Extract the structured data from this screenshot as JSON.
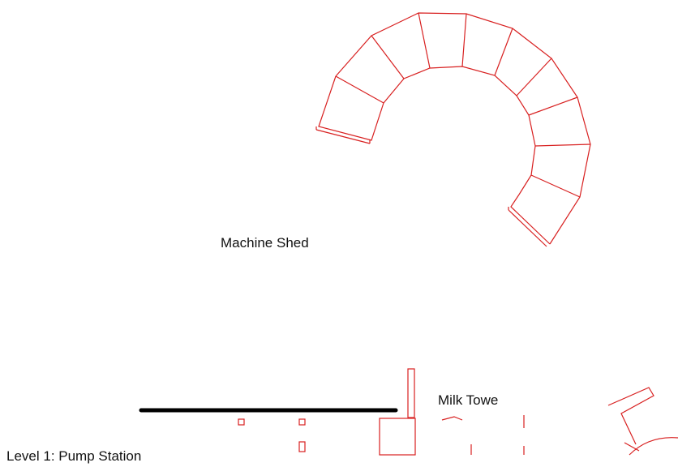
{
  "labels": {
    "machine_shed": "Machine Shed",
    "milk_tower": "Milk Towe",
    "level": "Level 1: Pump Station"
  },
  "colors": {
    "outline": "#d82020",
    "wall": "#000000",
    "text": "#111111",
    "background": "#ffffff"
  }
}
